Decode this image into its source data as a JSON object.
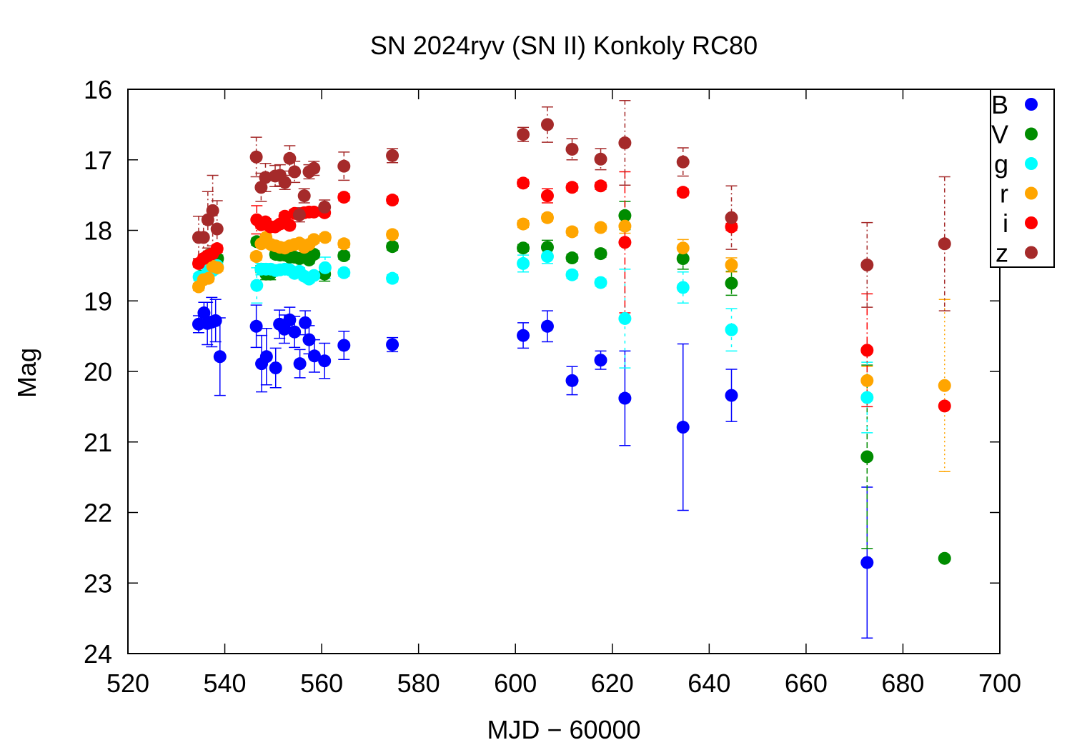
{
  "chart_data": {
    "type": "scatter",
    "title": "SN 2024ryv (SN II) Konkoly RC80",
    "xlabel": "MJD − 60000",
    "ylabel": "Mag",
    "xlim": [
      520,
      700
    ],
    "ylim": [
      16,
      24
    ],
    "y_inverted": true,
    "x_ticks": [
      "520",
      "540",
      "560",
      "580",
      "600",
      "620",
      "640",
      "660",
      "680",
      "700"
    ],
    "y_ticks": [
      "16",
      "17",
      "18",
      "19",
      "20",
      "21",
      "22",
      "23",
      "24"
    ],
    "grid": false,
    "legend_position": "top-right",
    "series": [
      {
        "name": "B",
        "color": "#0000ff",
        "points": [
          [
            534.6,
            19.33,
            0.12
          ],
          [
            535.7,
            19.17,
            0.15
          ],
          [
            536.4,
            19.32,
            0.3
          ],
          [
            537.3,
            19.3,
            0.35
          ],
          [
            538.1,
            19.28,
            0.3
          ],
          [
            539.0,
            19.79,
            0.55
          ],
          [
            546.5,
            19.36,
            0.3
          ],
          [
            547.6,
            19.89,
            0.4
          ],
          [
            548.6,
            19.79,
            0.4
          ],
          [
            550.5,
            19.95,
            0.28
          ],
          [
            551.3,
            19.33,
            0.2
          ],
          [
            552.3,
            19.4,
            0.2
          ],
          [
            553.4,
            19.27,
            0.18
          ],
          [
            554.4,
            19.44,
            0.22
          ],
          [
            555.5,
            19.89,
            0.2
          ],
          [
            556.6,
            19.31,
            0.17
          ],
          [
            557.4,
            19.55,
            0.2
          ],
          [
            558.5,
            19.78,
            0.23
          ],
          [
            560.6,
            19.85,
            0.25
          ],
          [
            564.6,
            19.63,
            0.2
          ],
          [
            574.6,
            19.62,
            0.1
          ],
          [
            601.6,
            19.49,
            0.18
          ],
          [
            606.6,
            19.36,
            0.22
          ],
          [
            611.7,
            20.13,
            0.2
          ],
          [
            617.6,
            19.84,
            0.13
          ],
          [
            622.6,
            20.38,
            0.67
          ],
          [
            634.6,
            20.79,
            1.18
          ],
          [
            644.6,
            20.34,
            0.37
          ],
          [
            672.6,
            22.71,
            1.07
          ]
        ]
      },
      {
        "name": "V",
        "color": "#008c00",
        "points": [
          [
            535.0,
            18.65,
            0.05
          ],
          [
            535.8,
            18.4,
            0.05
          ],
          [
            536.7,
            18.35,
            0.05
          ],
          [
            537.6,
            18.35,
            0.05
          ],
          [
            538.5,
            18.4,
            0.05
          ],
          [
            546.6,
            18.16,
            0.05
          ],
          [
            547.5,
            18.55,
            0.05
          ],
          [
            548.5,
            18.62,
            0.08
          ],
          [
            549.4,
            18.62,
            0.08
          ],
          [
            550.5,
            18.34,
            0.05
          ],
          [
            551.4,
            18.35,
            0.05
          ],
          [
            552.4,
            18.35,
            0.05
          ],
          [
            553.4,
            18.38,
            0.05
          ],
          [
            554.4,
            18.38,
            0.05
          ],
          [
            555.4,
            18.4,
            0.05
          ],
          [
            556.4,
            18.38,
            0.05
          ],
          [
            557.4,
            18.42,
            0.05
          ],
          [
            558.4,
            18.34,
            0.05
          ],
          [
            560.6,
            18.62,
            0.1
          ],
          [
            564.6,
            18.36,
            0.05
          ],
          [
            574.6,
            18.23,
            0.05
          ],
          [
            601.6,
            18.25,
            0.05
          ],
          [
            606.6,
            18.24,
            0.1
          ],
          [
            611.7,
            18.39,
            0.05
          ],
          [
            617.6,
            18.33,
            0.05
          ],
          [
            622.6,
            17.79,
            0.2
          ],
          [
            634.6,
            18.4,
            0.15
          ],
          [
            644.6,
            18.75,
            0.17
          ],
          [
            672.6,
            21.21,
            1.3
          ],
          [
            688.6,
            22.65,
            0
          ]
        ]
      },
      {
        "name": "g",
        "color": "#00ffff",
        "points": [
          [
            534.7,
            18.66,
            0.05
          ],
          [
            535.7,
            18.65,
            0.05
          ],
          [
            536.6,
            18.55,
            0.05
          ],
          [
            537.5,
            18.57,
            0.05
          ],
          [
            538.4,
            18.5,
            0.05
          ],
          [
            546.6,
            18.78,
            0.25
          ],
          [
            547.5,
            18.55,
            0.08
          ],
          [
            548.5,
            18.55,
            0.08
          ],
          [
            549.5,
            18.55,
            0.06
          ],
          [
            550.5,
            18.57,
            0.05
          ],
          [
            551.4,
            18.56,
            0.05
          ],
          [
            552.4,
            18.55,
            0.05
          ],
          [
            553.4,
            18.56,
            0.05
          ],
          [
            554.4,
            18.61,
            0.05
          ],
          [
            555.4,
            18.58,
            0.05
          ],
          [
            556.4,
            18.65,
            0.05
          ],
          [
            557.4,
            18.69,
            0.05
          ],
          [
            558.4,
            18.64,
            0.05
          ],
          [
            560.7,
            18.53,
            0.15
          ],
          [
            564.6,
            18.6,
            0.05
          ],
          [
            574.6,
            18.68,
            0.05
          ],
          [
            601.6,
            18.47,
            0.12
          ],
          [
            606.6,
            18.37,
            0.1
          ],
          [
            611.7,
            18.63,
            0.05
          ],
          [
            617.6,
            18.74,
            0.05
          ],
          [
            622.6,
            19.25,
            0.7
          ],
          [
            634.6,
            18.81,
            0.22
          ],
          [
            644.6,
            19.41,
            0.3
          ],
          [
            672.6,
            20.37,
            0.5
          ]
        ]
      },
      {
        "name": "r",
        "color": "#ffa500",
        "points": [
          [
            534.6,
            18.8,
            0.05
          ],
          [
            535.6,
            18.7,
            0.05
          ],
          [
            536.6,
            18.68,
            0.05
          ],
          [
            537.5,
            18.51,
            0.05
          ],
          [
            538.5,
            18.53,
            0.05
          ],
          [
            546.5,
            18.37,
            0.05
          ],
          [
            547.5,
            18.19,
            0.05
          ],
          [
            548.5,
            18.1,
            0.05
          ],
          [
            549.5,
            18.2,
            0.05
          ],
          [
            550.5,
            18.22,
            0.05
          ],
          [
            551.4,
            18.24,
            0.05
          ],
          [
            552.4,
            18.25,
            0.05
          ],
          [
            553.4,
            18.22,
            0.05
          ],
          [
            554.4,
            18.2,
            0.05
          ],
          [
            555.4,
            18.18,
            0.05
          ],
          [
            556.4,
            18.24,
            0.05
          ],
          [
            557.4,
            18.2,
            0.05
          ],
          [
            558.4,
            18.13,
            0.05
          ],
          [
            560.7,
            18.1,
            0.05
          ],
          [
            564.6,
            18.19,
            0.05
          ],
          [
            574.6,
            18.06,
            0.05
          ],
          [
            601.6,
            17.91,
            0.05
          ],
          [
            606.6,
            17.82,
            0.05
          ],
          [
            611.7,
            18.02,
            0.05
          ],
          [
            617.6,
            17.96,
            0.05
          ],
          [
            622.6,
            17.94,
            0.1
          ],
          [
            634.6,
            18.25,
            0.12
          ],
          [
            644.6,
            18.49,
            0.1
          ],
          [
            672.6,
            20.13,
            0.2
          ],
          [
            688.6,
            20.2,
            1.22
          ]
        ]
      },
      {
        "name": "i",
        "color": "#ff0000",
        "points": [
          [
            534.6,
            18.47,
            0.05
          ],
          [
            535.6,
            18.4,
            0.05
          ],
          [
            536.5,
            18.36,
            0.05
          ],
          [
            537.5,
            18.33,
            0.05
          ],
          [
            538.4,
            18.26,
            0.05
          ],
          [
            546.6,
            17.85,
            0.2
          ],
          [
            547.5,
            17.92,
            0.05
          ],
          [
            548.4,
            17.88,
            0.05
          ],
          [
            549.4,
            17.95,
            0.05
          ],
          [
            550.4,
            17.95,
            0.05
          ],
          [
            551.4,
            17.91,
            0.05
          ],
          [
            552.4,
            17.8,
            0.05
          ],
          [
            553.4,
            17.93,
            0.05
          ],
          [
            554.4,
            17.76,
            0.05
          ],
          [
            555.4,
            17.78,
            0.05
          ],
          [
            556.4,
            17.75,
            0.05
          ],
          [
            557.4,
            17.74,
            0.05
          ],
          [
            558.4,
            17.74,
            0.05
          ],
          [
            560.6,
            17.75,
            0.05
          ],
          [
            564.6,
            17.53,
            0.05
          ],
          [
            574.6,
            17.57,
            0.05
          ],
          [
            601.6,
            17.33,
            0.05
          ],
          [
            606.6,
            17.51,
            0.1
          ],
          [
            611.7,
            17.39,
            0.05
          ],
          [
            617.6,
            17.37,
            0.05
          ],
          [
            622.6,
            18.17,
            1.0
          ],
          [
            634.6,
            17.46,
            0.05
          ],
          [
            644.6,
            17.95,
            0.05
          ],
          [
            672.6,
            19.7,
            0.8
          ],
          [
            688.6,
            20.49,
            0
          ]
        ]
      },
      {
        "name": "z",
        "color": "#a52a2a",
        "points": [
          [
            534.6,
            18.1,
            0.3
          ],
          [
            535.6,
            18.1,
            0.3
          ],
          [
            536.5,
            17.85,
            0.4
          ],
          [
            537.5,
            17.72,
            0.5
          ],
          [
            538.4,
            17.98,
            0.4
          ],
          [
            546.5,
            16.96,
            0.28
          ],
          [
            547.5,
            17.39,
            0.2
          ],
          [
            548.4,
            17.25,
            0.2
          ],
          [
            550.4,
            17.23,
            0.15
          ],
          [
            551.4,
            17.22,
            0.15
          ],
          [
            552.4,
            17.32,
            0.1
          ],
          [
            553.4,
            16.98,
            0.18
          ],
          [
            554.4,
            17.17,
            0.15
          ],
          [
            555.4,
            17.78,
            0.1
          ],
          [
            556.4,
            17.51,
            0.1
          ],
          [
            557.4,
            17.17,
            0.1
          ],
          [
            558.4,
            17.12,
            0.1
          ],
          [
            560.6,
            17.67,
            0.1
          ],
          [
            564.6,
            17.09,
            0.2
          ],
          [
            574.6,
            16.94,
            0.1
          ],
          [
            601.6,
            16.64,
            0.1
          ],
          [
            606.6,
            16.5,
            0.25
          ],
          [
            611.7,
            16.85,
            0.15
          ],
          [
            617.6,
            16.99,
            0.15
          ],
          [
            622.6,
            16.76,
            0.6
          ],
          [
            634.6,
            17.03,
            0.2
          ],
          [
            644.6,
            17.82,
            0.45
          ],
          [
            672.6,
            18.49,
            0.6
          ],
          [
            688.6,
            18.19,
            0.95
          ]
        ]
      }
    ]
  }
}
